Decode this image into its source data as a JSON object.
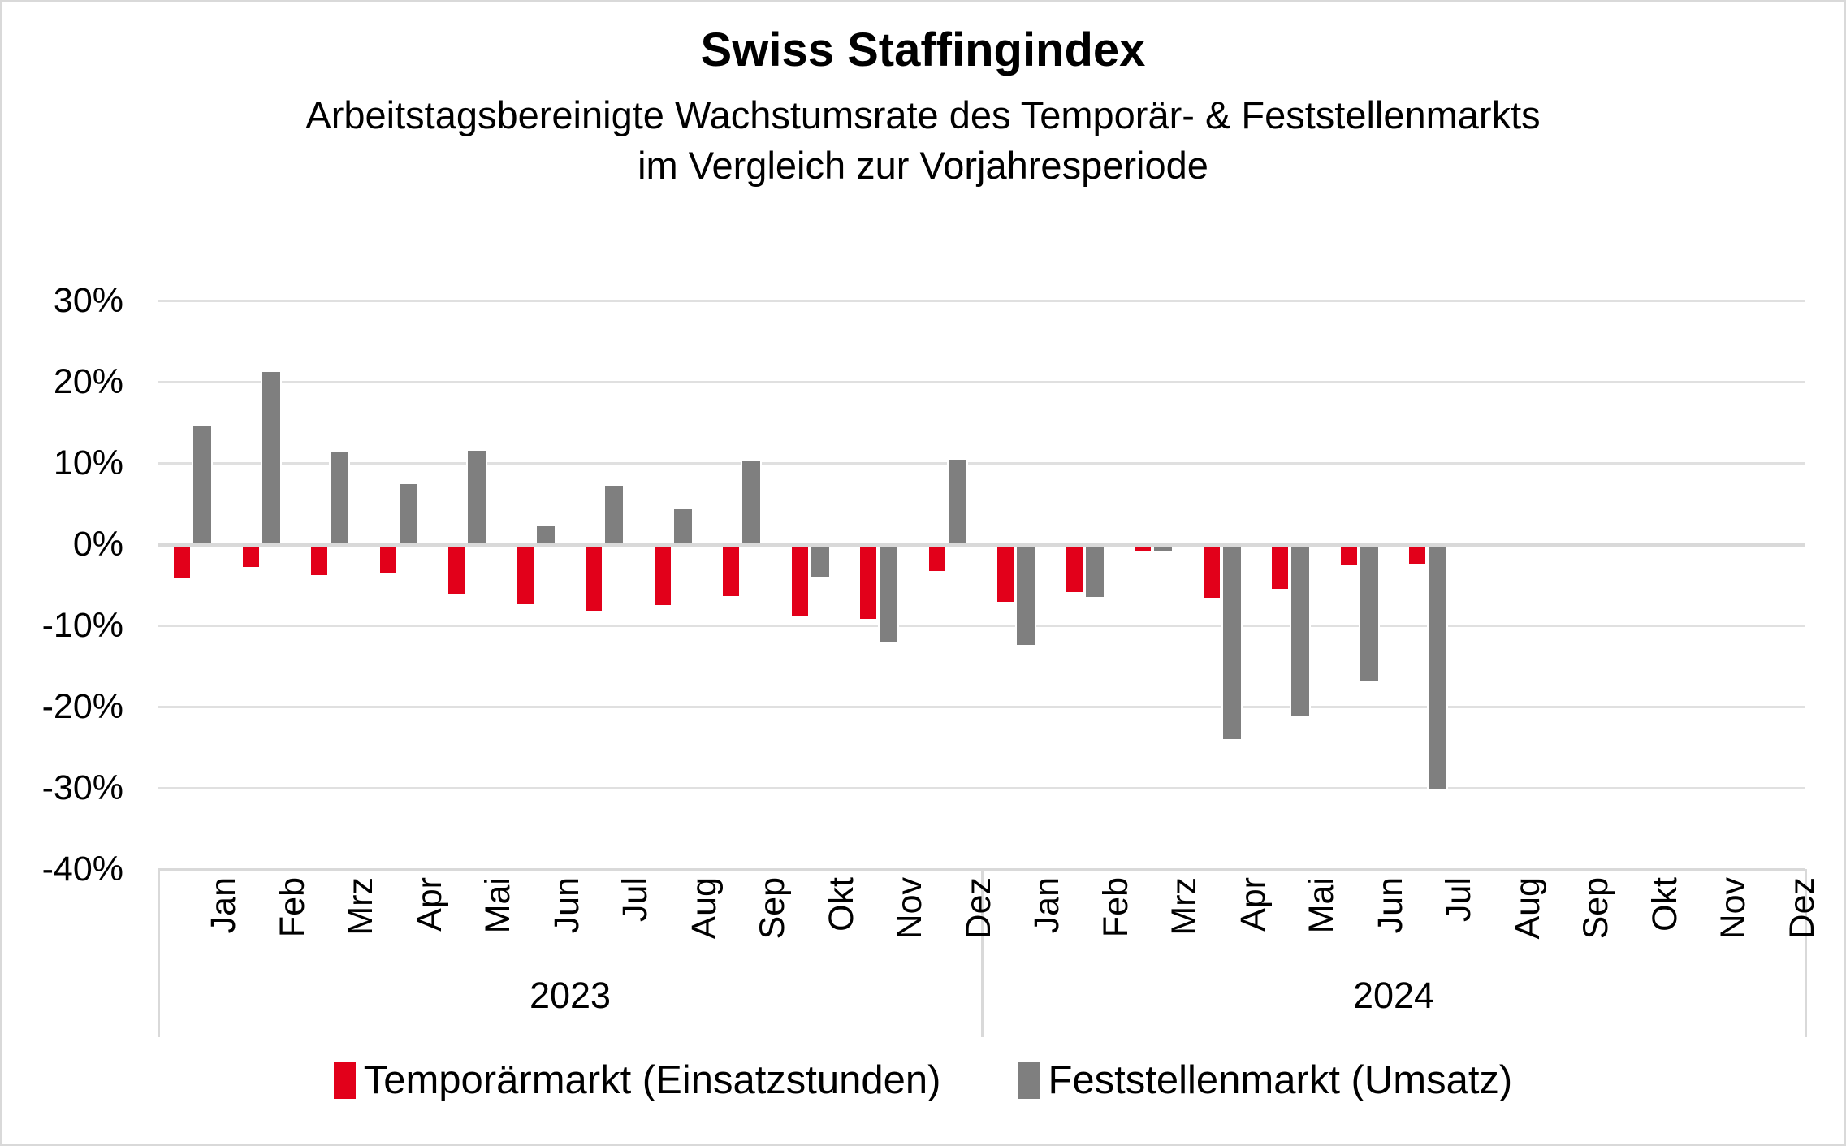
{
  "colors": {
    "temporaermarkt_red": "#E2001A",
    "feststellenmarkt_gray": "#7F7F7F",
    "gridline": "#E0E0E0",
    "axis_line": "#D9D9D9",
    "background": "#FFFFFF",
    "frame_border": "#D9D9D9",
    "text": "#000000"
  },
  "chart_data": {
    "type": "bar",
    "title": "Swiss Staffingindex",
    "subtitle_line1": "Arbeitstagsbereinigte Wachstumsrate des Temporär- & Feststellenmarkts",
    "subtitle_line2": "im Vergleich zur Vorjahresperiode",
    "xlabel": "",
    "ylabel": "",
    "unit": "%",
    "ylim": [
      -40,
      30
    ],
    "y_ticks": [
      30,
      20,
      10,
      0,
      -10,
      -20,
      -30,
      -40
    ],
    "y_tick_format": "percent",
    "grid": true,
    "legend_position": "bottom",
    "categories": [
      "Jan",
      "Feb",
      "Mrz",
      "Apr",
      "Mai",
      "Jun",
      "Jul",
      "Aug",
      "Sep",
      "Okt",
      "Nov",
      "Dez",
      "Jan",
      "Feb",
      "Mrz",
      "Apr",
      "Mai",
      "Jun",
      "Jul",
      "Aug",
      "Sep",
      "Okt",
      "Nov",
      "Dez"
    ],
    "year_groups": [
      {
        "label": "2023",
        "months": 12
      },
      {
        "label": "2024",
        "months": 12
      }
    ],
    "series": [
      {
        "key": "temporaermarkt",
        "name": "Temporärmarkt (Einsatzstunden)",
        "color": "#E2001A",
        "values": [
          -4.2,
          -2.8,
          -3.8,
          -3.6,
          -6.1,
          -7.4,
          -8.2,
          -7.5,
          -6.4,
          -8.9,
          -9.2,
          -3.3,
          -7.1,
          -5.9,
          -0.9,
          -6.6,
          -5.5,
          -2.6,
          -2.4,
          null,
          null,
          null,
          null,
          null
        ]
      },
      {
        "key": "feststellenmarkt",
        "name": "Feststellenmarkt (Umsatz)",
        "color": "#7F7F7F",
        "values": [
          14.6,
          21.2,
          11.4,
          7.4,
          11.5,
          2.2,
          7.2,
          4.3,
          10.3,
          -4.1,
          -12.1,
          10.4,
          -12.4,
          -6.5,
          -0.9,
          -24.0,
          -21.2,
          -16.9,
          -30.1,
          null,
          null,
          null,
          null,
          null
        ]
      }
    ]
  }
}
